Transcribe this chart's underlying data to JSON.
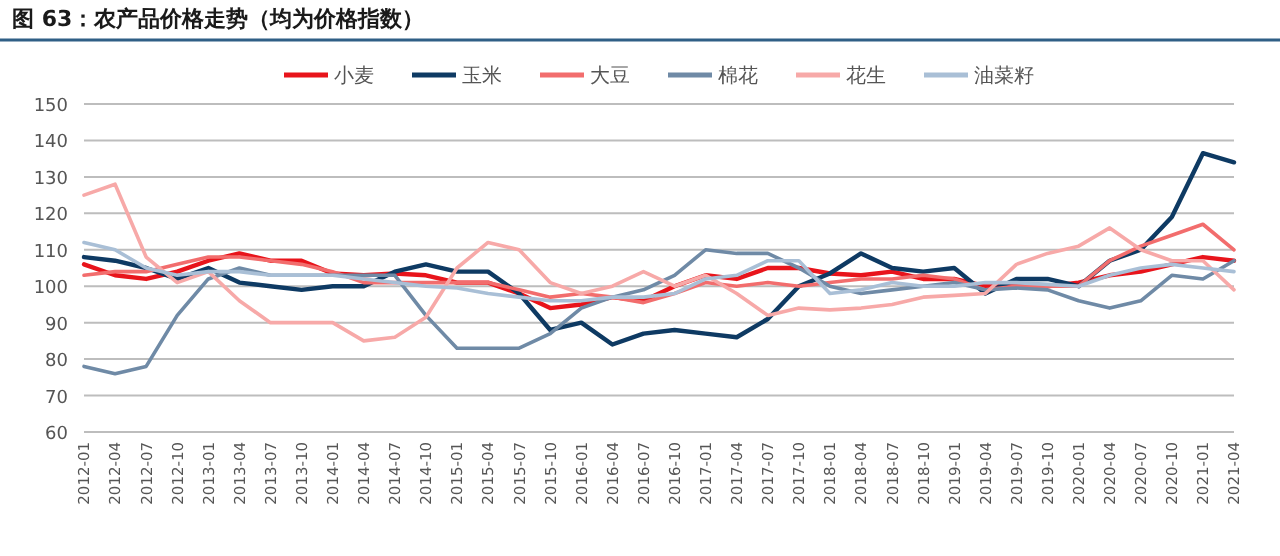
{
  "chart_data": {
    "type": "line",
    "title": "图 63：农产品价格走势（均为价格指数）",
    "x": [
      "2012-01",
      "2012-04",
      "2012-07",
      "2012-10",
      "2013-01",
      "2013-04",
      "2013-07",
      "2013-10",
      "2014-01",
      "2014-04",
      "2014-07",
      "2014-10",
      "2015-01",
      "2015-04",
      "2015-07",
      "2015-10",
      "2016-01",
      "2016-04",
      "2016-07",
      "2016-10",
      "2017-01",
      "2017-04",
      "2017-07",
      "2017-10",
      "2018-01",
      "2018-04",
      "2018-07",
      "2018-10",
      "2019-01",
      "2019-04",
      "2019-07",
      "2019-10",
      "2020-01",
      "2020-04",
      "2020-07",
      "2020-10",
      "2021-01",
      "2021-04"
    ],
    "series": [
      {
        "name": "小麦",
        "color": "#e8141b",
        "values": [
          106,
          103,
          102,
          104,
          107,
          109,
          107,
          107,
          103.5,
          103,
          103.5,
          103,
          101,
          101,
          98,
          94,
          95,
          97,
          96,
          100,
          103,
          102,
          105,
          105,
          103.5,
          103,
          104,
          102,
          102,
          100,
          100,
          100,
          101,
          103,
          104,
          106,
          108,
          107
        ]
      },
      {
        "name": "玉米",
        "color": "#0e3a63",
        "values": [
          108,
          107,
          105,
          102,
          105,
          101,
          100,
          99,
          100,
          100,
          104,
          106,
          104,
          104,
          98,
          88,
          90,
          84,
          87,
          88,
          87,
          86,
          91,
          100,
          103.5,
          109,
          105,
          104,
          105,
          98,
          102,
          102,
          100,
          107,
          110,
          119,
          136.5,
          134
        ]
      },
      {
        "name": "大豆",
        "color": "#f26d6d",
        "values": [
          103,
          104,
          104,
          106,
          108,
          108,
          107,
          106,
          104,
          101,
          101,
          101,
          101,
          101,
          99,
          97,
          98,
          97,
          95.5,
          98,
          101,
          100,
          101,
          100,
          101,
          102,
          102,
          103,
          102,
          99,
          100,
          100,
          100,
          107,
          111,
          114,
          117,
          110
        ]
      },
      {
        "name": "棉花",
        "color": "#6f8aa6",
        "values": [
          78,
          76,
          78,
          92,
          102,
          105,
          103,
          103,
          103,
          103,
          103,
          92,
          83,
          83,
          83,
          87,
          94,
          97,
          99,
          103,
          110,
          109,
          109,
          105,
          100,
          98,
          99,
          100,
          101,
          99,
          99.5,
          99,
          96,
          94,
          96,
          103,
          102,
          107
        ]
      },
      {
        "name": "花生",
        "color": "#f7a9a8",
        "values": [
          125,
          128,
          108,
          101,
          104,
          96,
          90,
          90,
          90,
          85,
          86,
          91.5,
          105,
          112,
          110,
          101,
          98,
          100,
          104,
          100,
          103,
          98,
          92,
          94,
          93.5,
          94,
          95,
          97,
          97.5,
          98,
          106,
          109,
          111,
          116,
          110,
          107,
          107,
          99
        ]
      },
      {
        "name": "油菜籽",
        "color": "#a9bfd6",
        "values": [
          112,
          110,
          105,
          103,
          104,
          104,
          103,
          103,
          103,
          102,
          101,
          100,
          99.5,
          98,
          97,
          96,
          96,
          97,
          97,
          98,
          102,
          103,
          107,
          107,
          98,
          99,
          101,
          100,
          100,
          101,
          101,
          100.5,
          100,
          103,
          105,
          106,
          105,
          104
        ]
      }
    ],
    "xlim": [
      "2012-01",
      "2021-04"
    ],
    "xticks": [
      "2012-01",
      "2012-04",
      "2012-07",
      "2012-10",
      "2013-01",
      "2013-04",
      "2013-07",
      "2013-10",
      "2014-01",
      "2014-04",
      "2014-07",
      "2014-10",
      "2015-01",
      "2015-04",
      "2015-07",
      "2015-10",
      "2016-01",
      "2016-04",
      "2016-07",
      "2016-10",
      "2017-01",
      "2017-04",
      "2017-07",
      "2017-10",
      "2018-01",
      "2018-04",
      "2018-07",
      "2018-10",
      "2019-01",
      "2019-04",
      "2019-07",
      "2019-10",
      "2020-01",
      "2020-04",
      "2020-07",
      "2020-10",
      "2021-01",
      "2021-04"
    ],
    "ylim": [
      60,
      150
    ],
    "yticks": [
      60,
      70,
      80,
      90,
      100,
      110,
      120,
      130,
      140,
      150
    ],
    "grid": "y",
    "legend": "top",
    "marker": "none",
    "line_style": "solid"
  }
}
